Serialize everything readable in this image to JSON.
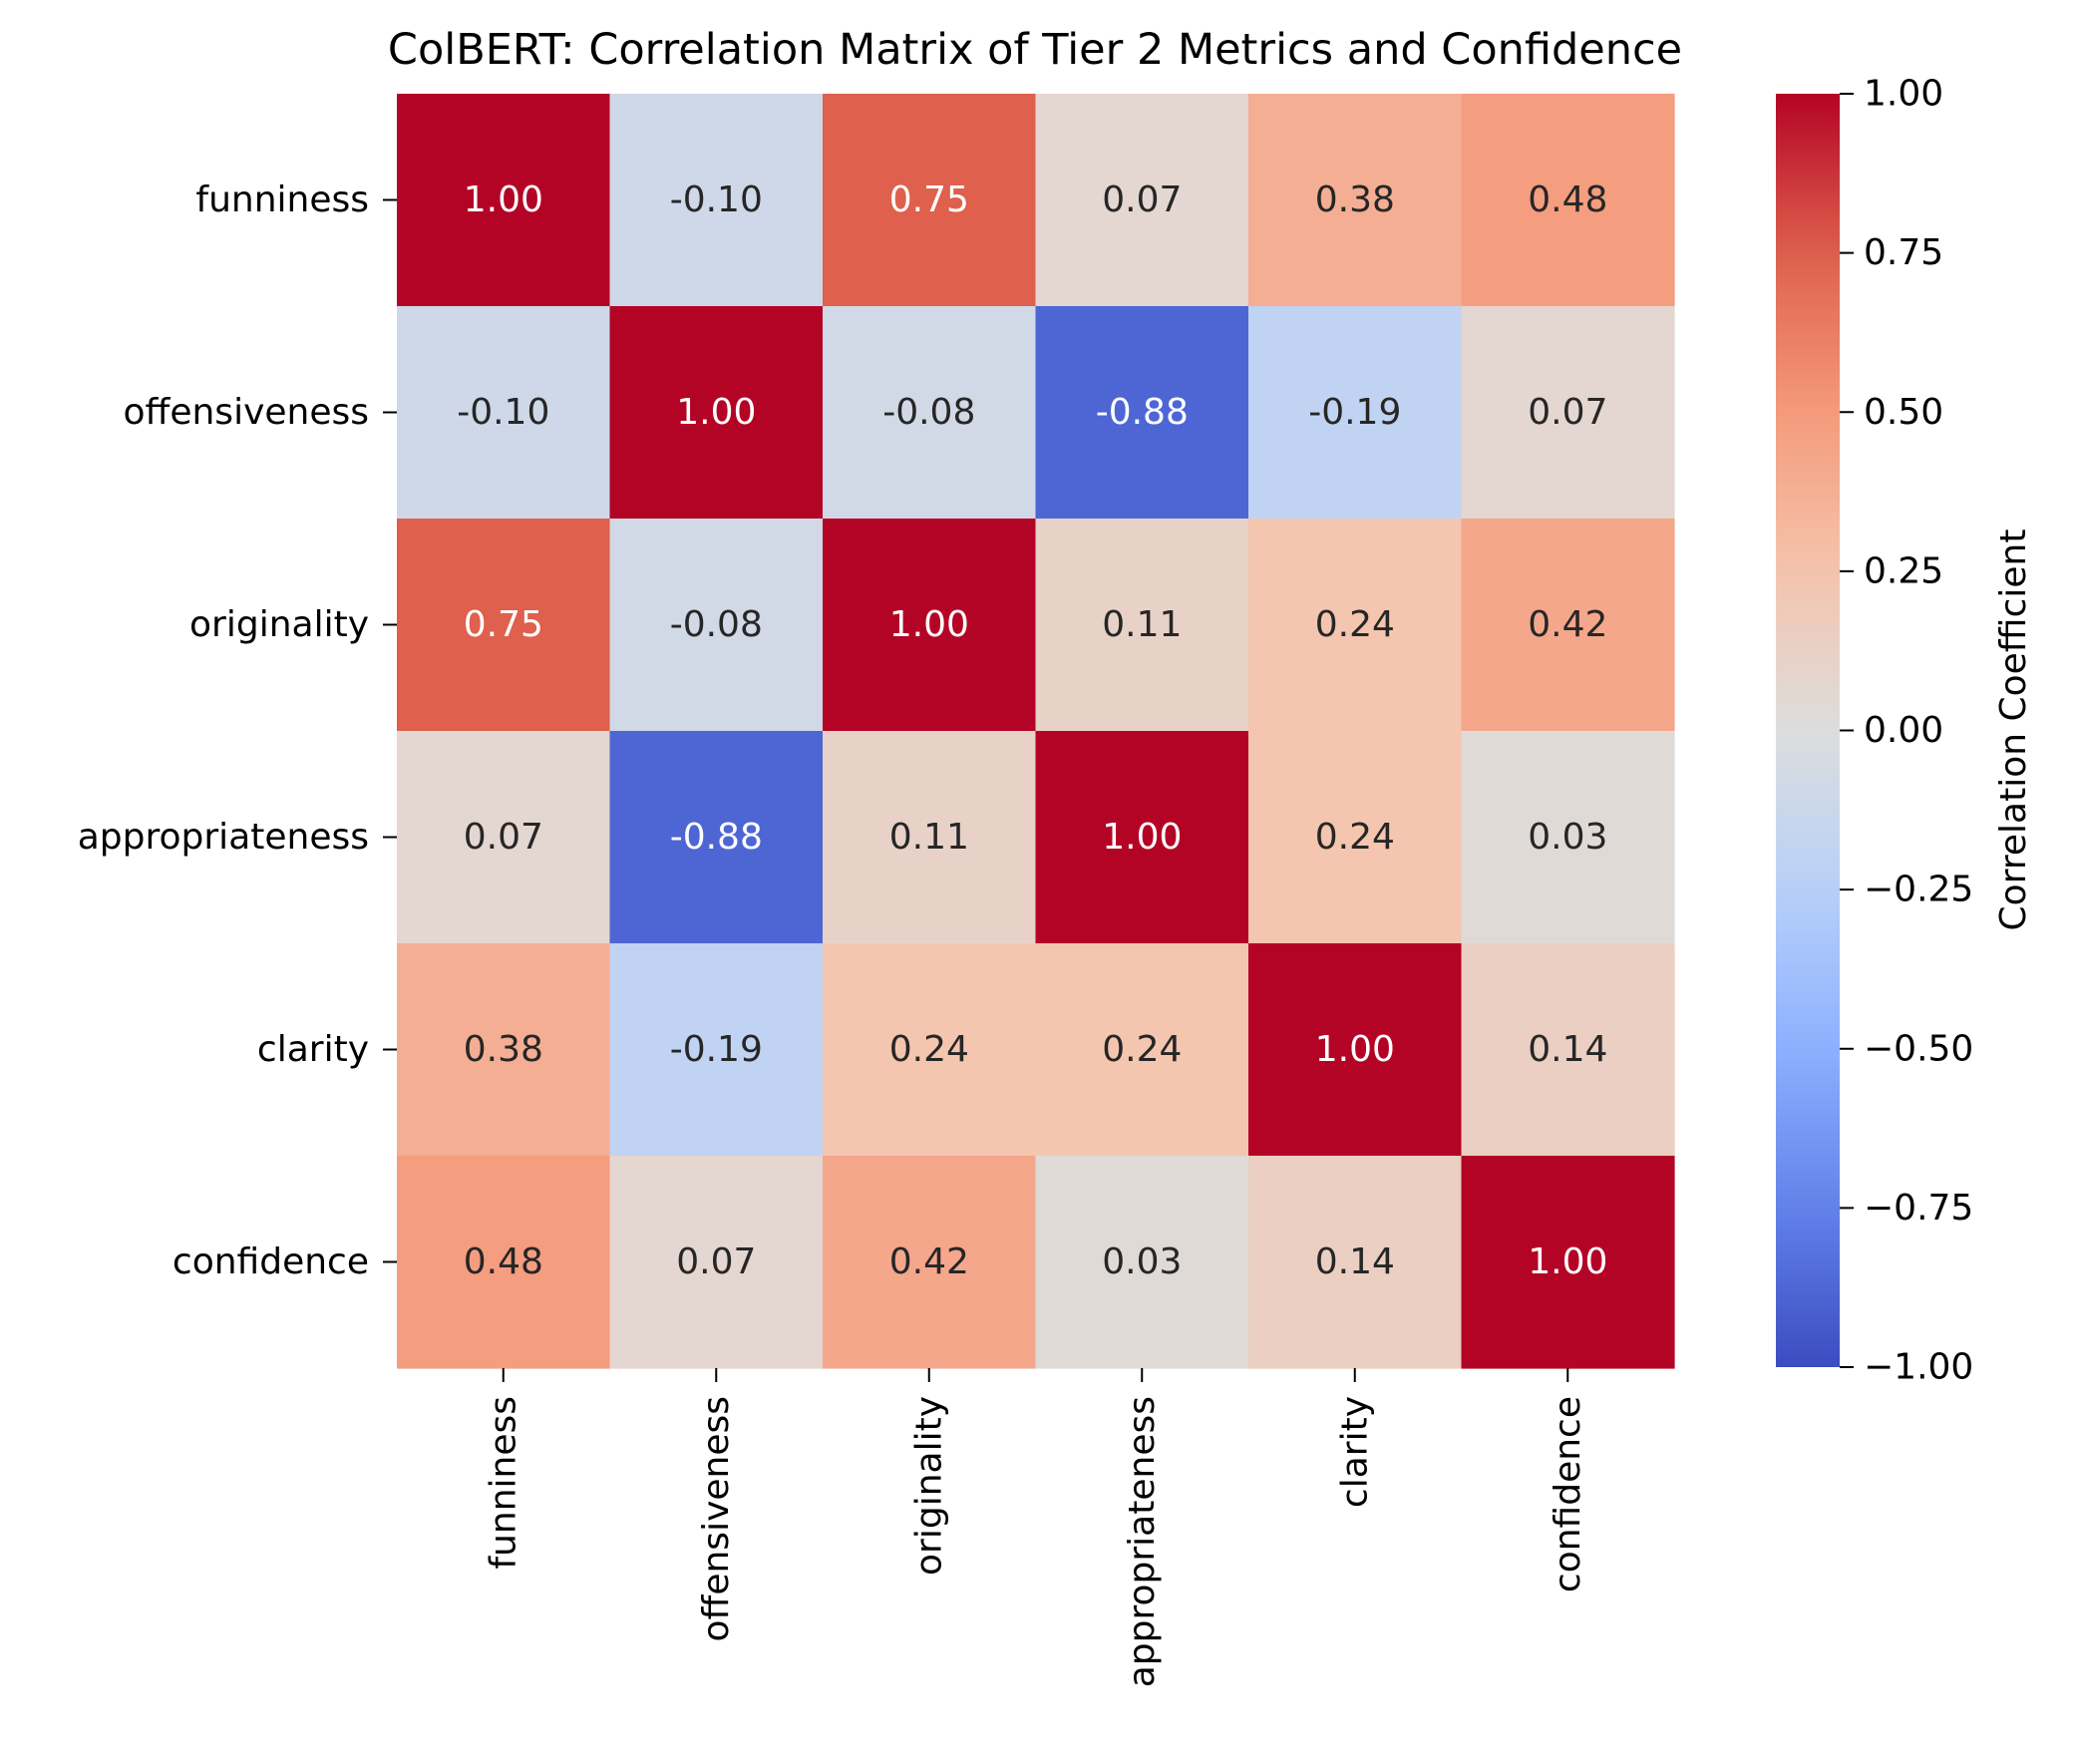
{
  "chart_data": {
    "type": "heatmap",
    "title": "ColBERT: Correlation Matrix of Tier 2 Metrics and Confidence",
    "rows": [
      "funniness",
      "offensiveness",
      "originality",
      "appropriateness",
      "clarity",
      "confidence"
    ],
    "columns": [
      "funniness",
      "offensiveness",
      "originality",
      "appropriateness",
      "clarity",
      "confidence"
    ],
    "values": [
      [
        1.0,
        -0.1,
        0.75,
        0.07,
        0.38,
        0.48
      ],
      [
        -0.1,
        1.0,
        -0.08,
        -0.88,
        -0.19,
        0.07
      ],
      [
        0.75,
        -0.08,
        1.0,
        0.11,
        0.24,
        0.42
      ],
      [
        0.07,
        -0.88,
        0.11,
        1.0,
        0.24,
        0.03
      ],
      [
        0.38,
        -0.19,
        0.24,
        0.24,
        1.0,
        0.14
      ],
      [
        0.48,
        0.07,
        0.42,
        0.03,
        0.14,
        1.0
      ]
    ],
    "annotation_format": "2 decimals",
    "colormap": "coolwarm",
    "vmin": -1.0,
    "vmax": 1.0,
    "colorbar": {
      "label": "Correlation Coefficient",
      "ticks": [
        1.0,
        0.75,
        0.5,
        0.25,
        0.0,
        -0.25,
        -0.5,
        -0.75,
        -1.0
      ],
      "tick_labels": [
        "1.00",
        "0.75",
        "0.50",
        "0.25",
        "0.00",
        "−0.25",
        "−0.50",
        "−0.75",
        "−1.00"
      ],
      "placement": "right"
    },
    "colors": {
      "min": "#3b4cc0",
      "mid": "#dddddd",
      "max": "#b40426",
      "text_light": "#ffffff",
      "text_dark": "#262626"
    }
  }
}
